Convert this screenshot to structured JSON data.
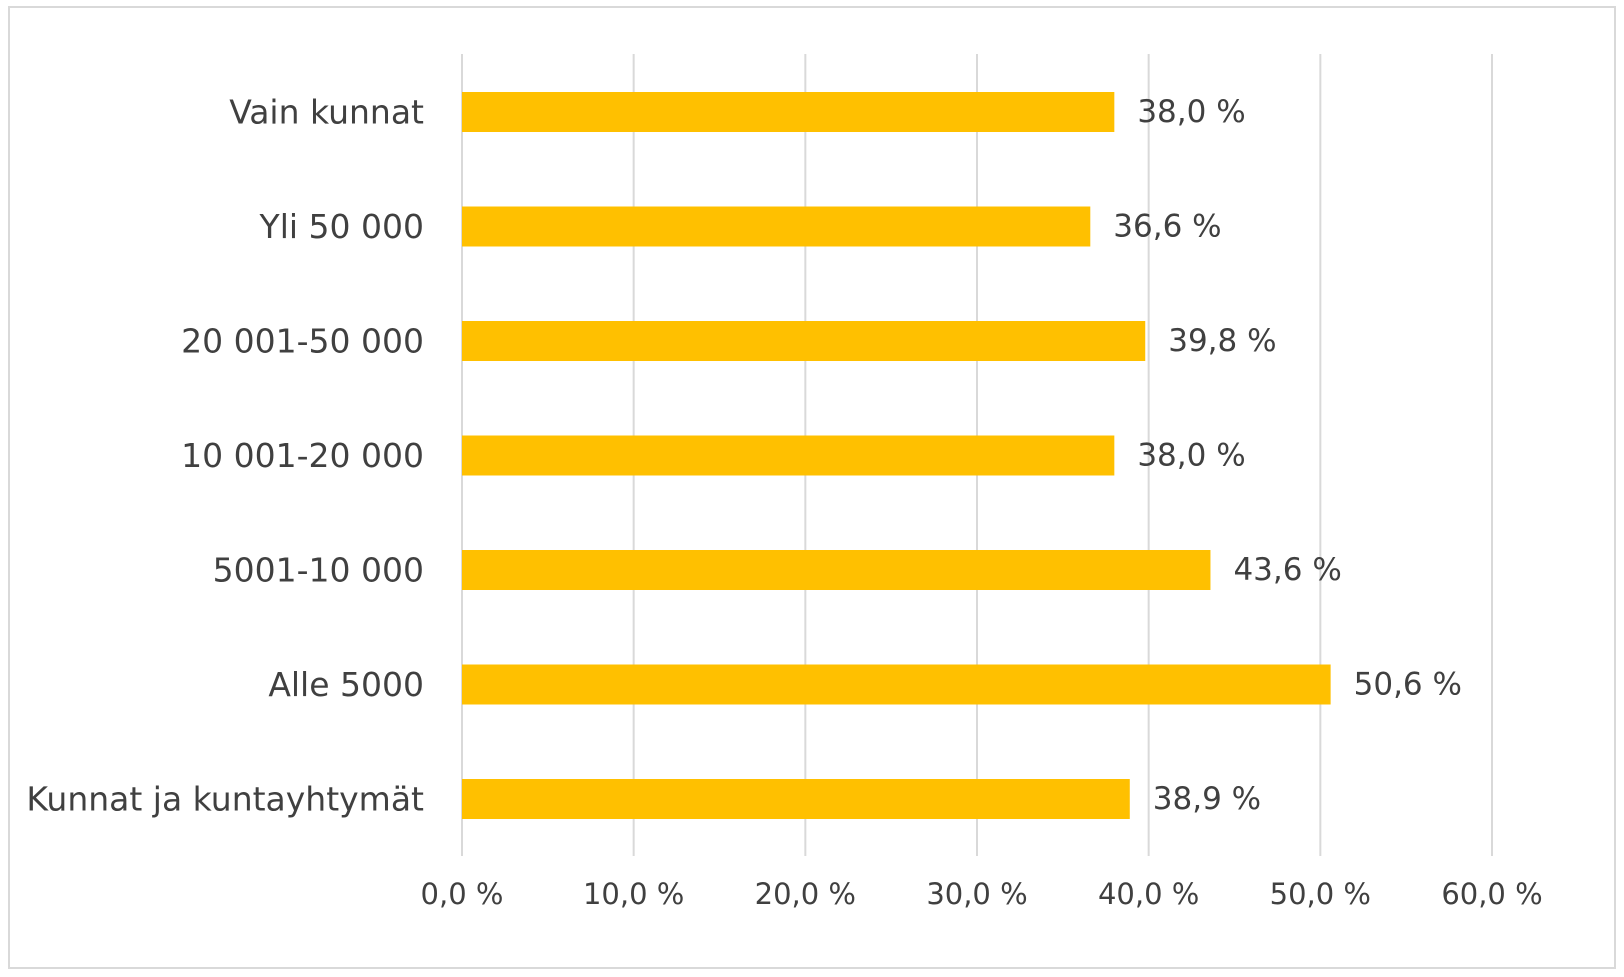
{
  "chart_data": {
    "type": "bar",
    "orientation": "horizontal",
    "categories": [
      "Vain kunnat",
      "Yli 50 000",
      "20 001-50 000",
      "10 001-20 000",
      "5001-10 000",
      "Alle 5000",
      "Kunnat ja kuntayhtymät"
    ],
    "values": [
      38.0,
      36.6,
      39.8,
      38.0,
      43.6,
      50.6,
      38.9
    ],
    "data_labels": [
      "38,0 %",
      "36,6 %",
      "39,8 %",
      "38,0 %",
      "43,6 %",
      "50,6 %",
      "38,9 %"
    ],
    "xlim": [
      0,
      60
    ],
    "xticks": [
      0,
      10,
      20,
      30,
      40,
      50,
      60
    ],
    "xtick_labels": [
      "0,0 %",
      "10,0 %",
      "20,0 %",
      "30,0 %",
      "40,0 %",
      "50,0 %",
      "60,0 %"
    ],
    "title": "",
    "xlabel": "",
    "ylabel": "",
    "grid": "vertical",
    "legend": "none",
    "bar_color": "#ffc000",
    "gridline_color": "#d9d9d9",
    "text_color": "#404040"
  }
}
